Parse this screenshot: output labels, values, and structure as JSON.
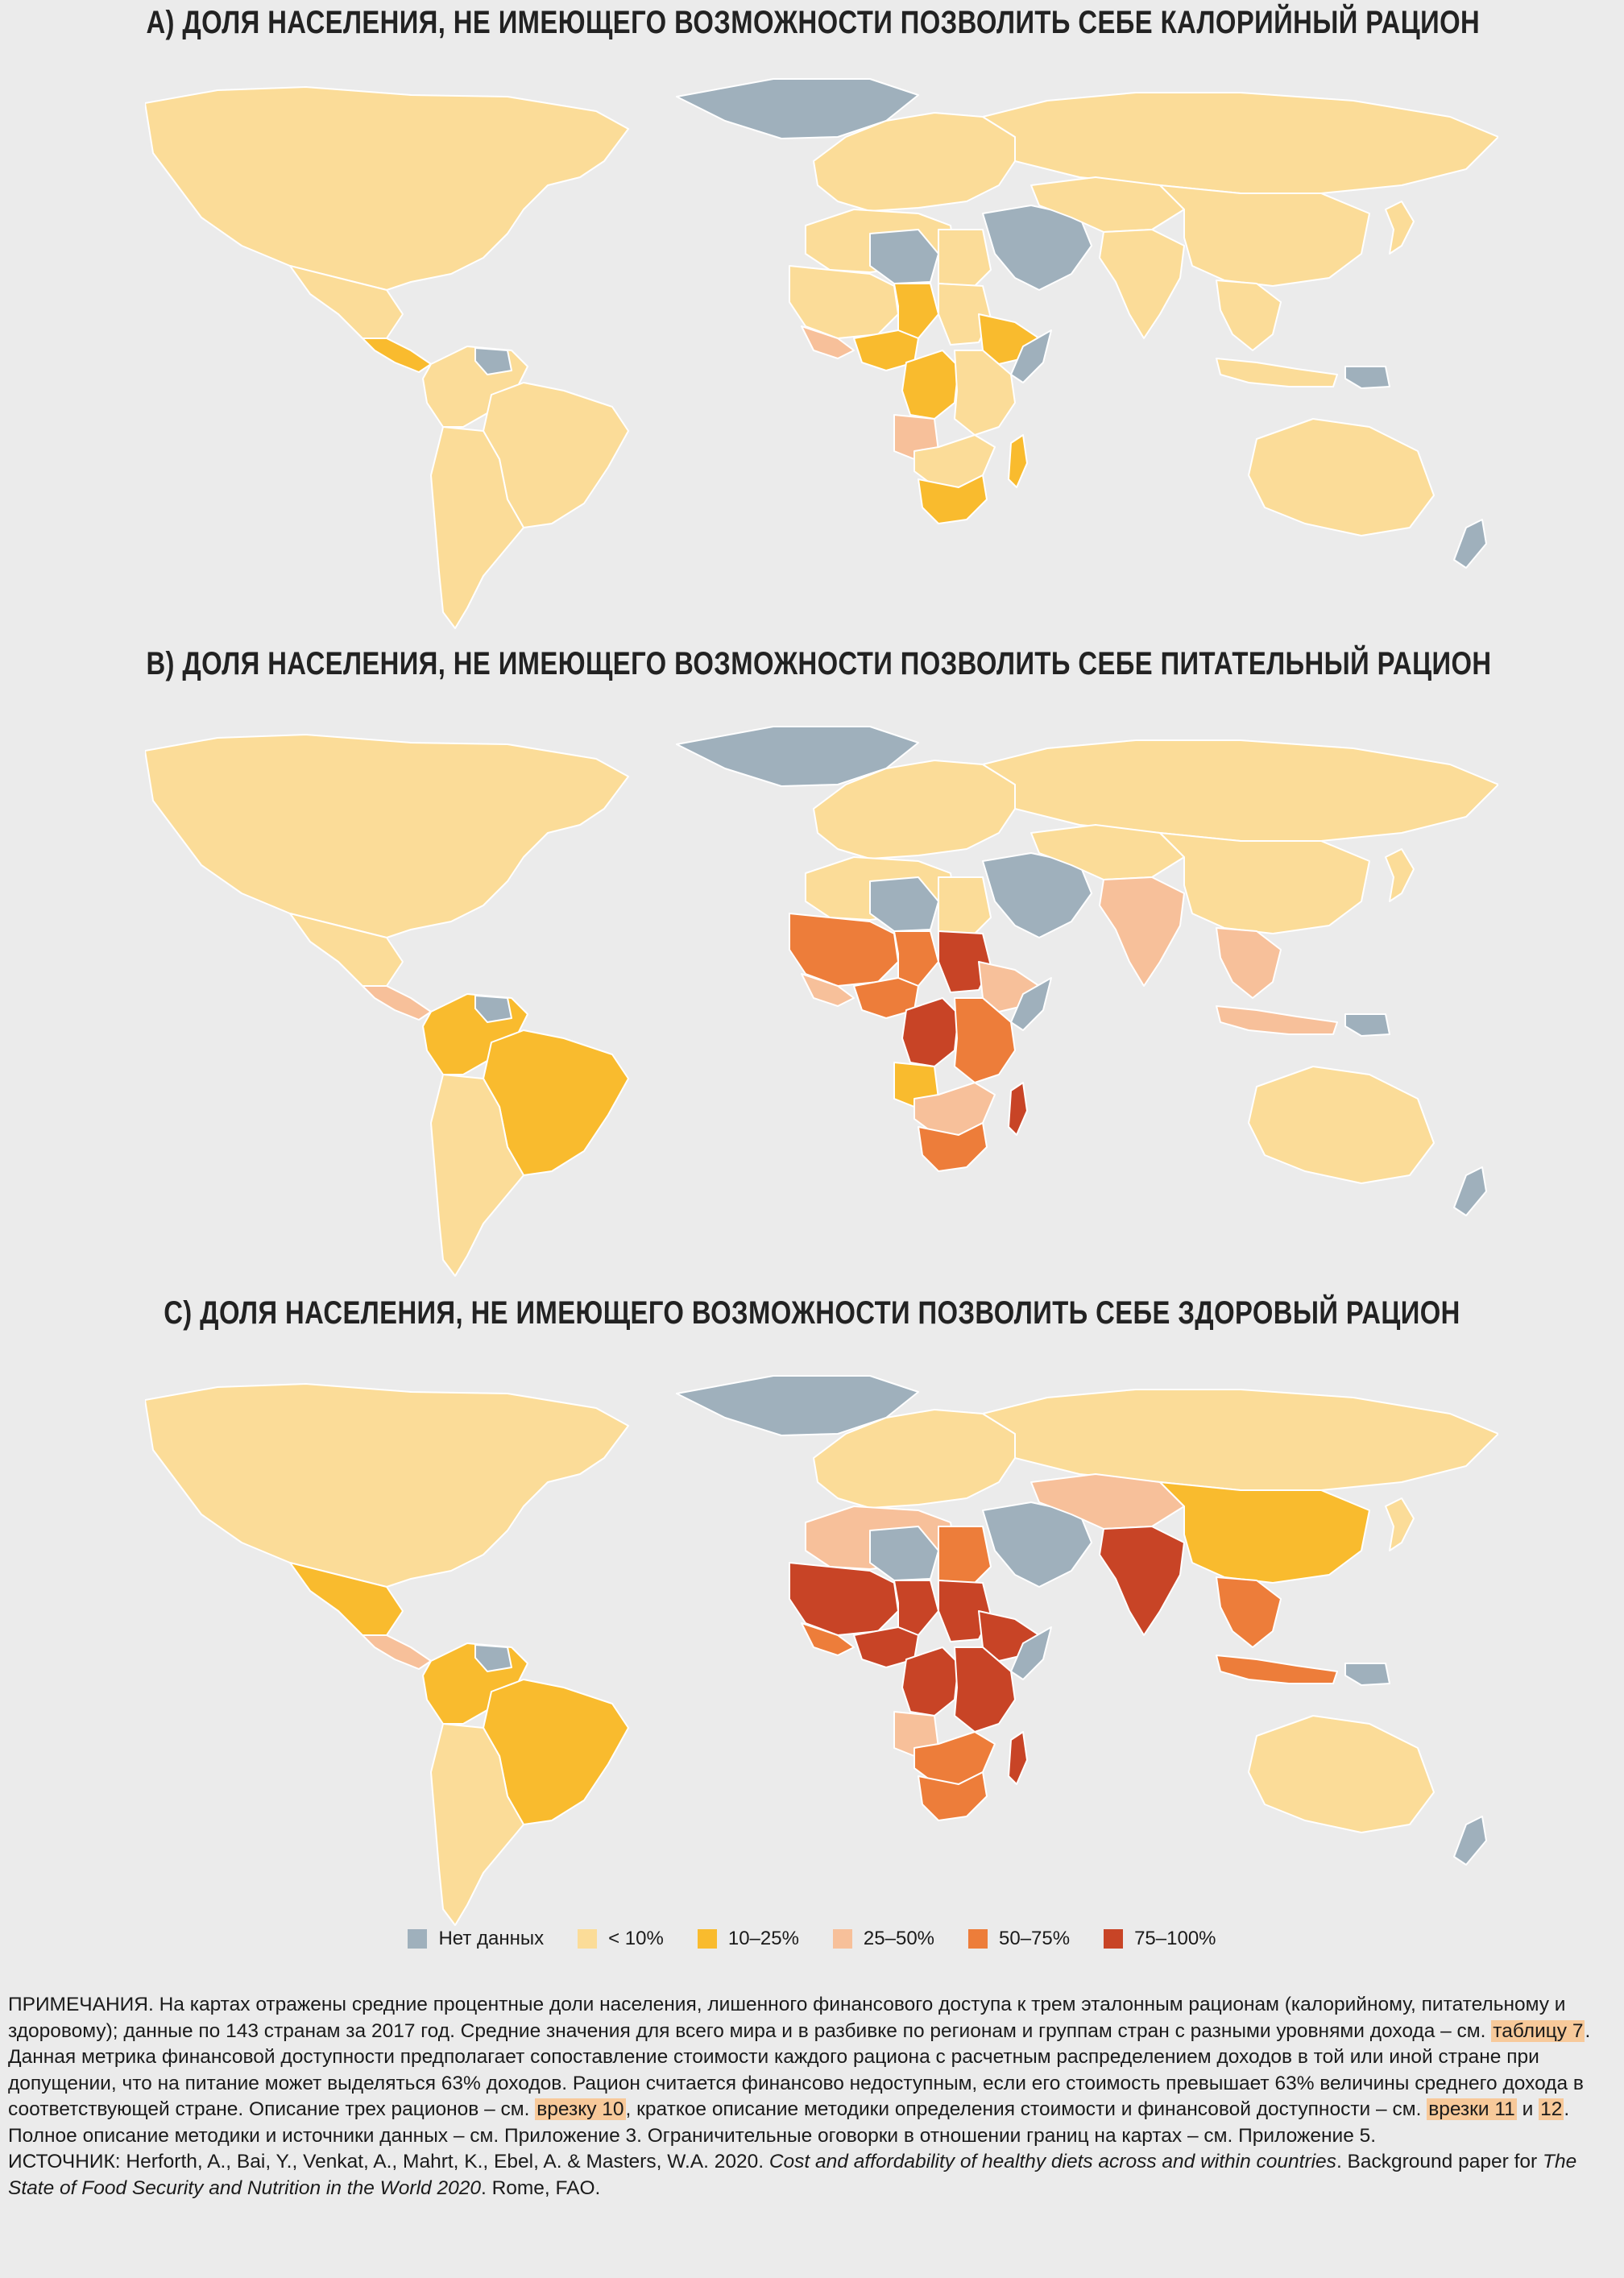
{
  "titles": {
    "a": "A) ДОЛЯ НАСЕЛЕНИЯ, НЕ ИМЕЮЩЕГО ВОЗМОЖНОСТИ ПОЗВОЛИТЬ СЕБЕ КАЛОРИЙНЫЙ РАЦИОН",
    "b": "B) ДОЛЯ НАСЕЛЕНИЯ, НЕ ИМЕЮЩЕГО ВОЗМОЖНОСТИ ПОЗВОЛИТЬ СЕБЕ ПИТАТЕЛЬНЫЙ РАЦИОН",
    "c": "C) ДОЛЯ НАСЕЛЕНИЯ, НЕ ИМЕЮЩЕГО ВОЗМОЖНОСТИ ПОЗВОЛИТЬ СЕБЕ ЗДОРОВЫЙ РАЦИОН"
  },
  "colors": {
    "background": "#ebebeb",
    "border": "#ffffff",
    "nodata": "#9fb0bc",
    "lt10": "#fbdc98",
    "c10_25": "#f9bb2e",
    "c25_50": "#f7c09a",
    "c50_75": "#ed7d3a",
    "c75_100": "#c84426"
  },
  "legend": [
    {
      "key": "nodata",
      "label": "Нет данных",
      "color": "#9fb0bc"
    },
    {
      "key": "lt10",
      "label": "< 10%",
      "color": "#fbdc98"
    },
    {
      "key": "c10_25",
      "label": "10–25%",
      "color": "#f9bb2e"
    },
    {
      "key": "c25_50",
      "label": "25–50%",
      "color": "#f7c09a"
    },
    {
      "key": "c50_75",
      "label": "50–75%",
      "color": "#ed7d3a"
    },
    {
      "key": "c75_100",
      "label": "75–100%",
      "color": "#c84426"
    }
  ],
  "maps": {
    "a": {
      "greenland": "nodata",
      "north_america": "lt10",
      "mexico": "lt10",
      "central_america": "c10_25",
      "south_america_north": "lt10",
      "brazil": "lt10",
      "south_america_south": "lt10",
      "guyana": "nodata",
      "europe": "lt10",
      "russia": "lt10",
      "north_africa": "lt10",
      "libya": "nodata",
      "egypt": "lt10",
      "west_africa": "lt10",
      "west_africa_coast": "c25_50",
      "chad": "c10_25",
      "sudan": "lt10",
      "horn": "c10_25",
      "somalia": "nodata",
      "central_africa": "c10_25",
      "drc": "c10_25",
      "east_africa": "lt10",
      "angola": "c25_50",
      "southern_africa": "lt10",
      "south_africa": "c10_25",
      "madagascar": "c10_25",
      "middle_east": "nodata",
      "central_asia": "lt10",
      "india": "lt10",
      "china": "lt10",
      "southeast_asia": "lt10",
      "indonesia": "lt10",
      "png": "nodata",
      "australia": "lt10",
      "nz": "nodata",
      "japan": "lt10"
    },
    "b": {
      "greenland": "nodata",
      "north_america": "lt10",
      "mexico": "lt10",
      "central_america": "c25_50",
      "south_america_north": "c10_25",
      "brazil": "c10_25",
      "south_america_south": "lt10",
      "guyana": "nodata",
      "europe": "lt10",
      "russia": "lt10",
      "north_africa": "lt10",
      "libya": "nodata",
      "egypt": "lt10",
      "west_africa": "c50_75",
      "west_africa_coast": "c25_50",
      "chad": "c50_75",
      "sudan": "c75_100",
      "horn": "c25_50",
      "somalia": "nodata",
      "central_africa": "c50_75",
      "drc": "c75_100",
      "east_africa": "c50_75",
      "angola": "c10_25",
      "southern_africa": "c25_50",
      "south_africa": "c50_75",
      "madagascar": "c75_100",
      "middle_east": "nodata",
      "central_asia": "lt10",
      "india": "c25_50",
      "china": "lt10",
      "southeast_asia": "c25_50",
      "indonesia": "c25_50",
      "png": "nodata",
      "australia": "lt10",
      "nz": "nodata",
      "japan": "lt10"
    },
    "c": {
      "greenland": "nodata",
      "north_america": "lt10",
      "mexico": "c10_25",
      "central_america": "c25_50",
      "south_america_north": "c10_25",
      "brazil": "c10_25",
      "south_america_south": "lt10",
      "guyana": "nodata",
      "europe": "lt10",
      "russia": "lt10",
      "north_africa": "c25_50",
      "libya": "nodata",
      "egypt": "c50_75",
      "west_africa": "c75_100",
      "west_africa_coast": "c50_75",
      "chad": "c75_100",
      "sudan": "c75_100",
      "horn": "c75_100",
      "somalia": "nodata",
      "central_africa": "c75_100",
      "drc": "c75_100",
      "east_africa": "c75_100",
      "angola": "c25_50",
      "southern_africa": "c50_75",
      "south_africa": "c50_75",
      "madagascar": "c75_100",
      "middle_east": "nodata",
      "central_asia": "c25_50",
      "india": "c75_100",
      "china": "c10_25",
      "southeast_asia": "c50_75",
      "indonesia": "c50_75",
      "png": "nodata",
      "australia": "lt10",
      "nz": "nodata",
      "japan": "lt10"
    }
  },
  "notes": {
    "p1_a": "ПРИМЕЧАНИЯ. На картах отражены средние процентные доли населения, лишенного финансового доступа к трем эталонным рационам (калорийному, питательному и здоровому); данные по 143 странам за 2017 год. Средние значения для всего мира и в разбивке по регионам и группам стран с разными уровнями дохода – см.",
    "p1_link1": "таблицу 7",
    "p1_b": ". Данная метрика финансовой доступности предполагает сопоставление стоимости каждого рациона с расчетным распределением доходов в той или иной стране при допущении, что на питание может выделяться 63% доходов. Рацион считается финансово недоступным, если его стоимость превышает 63% величины среднего дохода в соответствующей стране. Описание трех рационов – см.",
    "p1_link2": "врезку 10",
    "p1_c": ", краткое описание методики определения стоимости и финансовой доступности – см.",
    "p1_link3": "врезки 11",
    "p1_and": "и",
    "p1_link4": "12",
    "p1_d": ". Полное описание методики и источники данных – см. Приложение 3. Ограничительные оговорки в отношении границ на картах – см. Приложение 5.",
    "p2_a": "ИСТОЧНИК: Herforth, A., Bai, Y., Venkat, A., Mahrt, K., Ebel, A. & Masters, W.A. 2020.",
    "p2_title": "Cost and affordability of healthy diets across and within countries",
    "p2_b": ". Background paper for",
    "p2_series": "The State of Food Security and Nutrition in the World 2020",
    "p2_c": ". Rome, FAO."
  }
}
